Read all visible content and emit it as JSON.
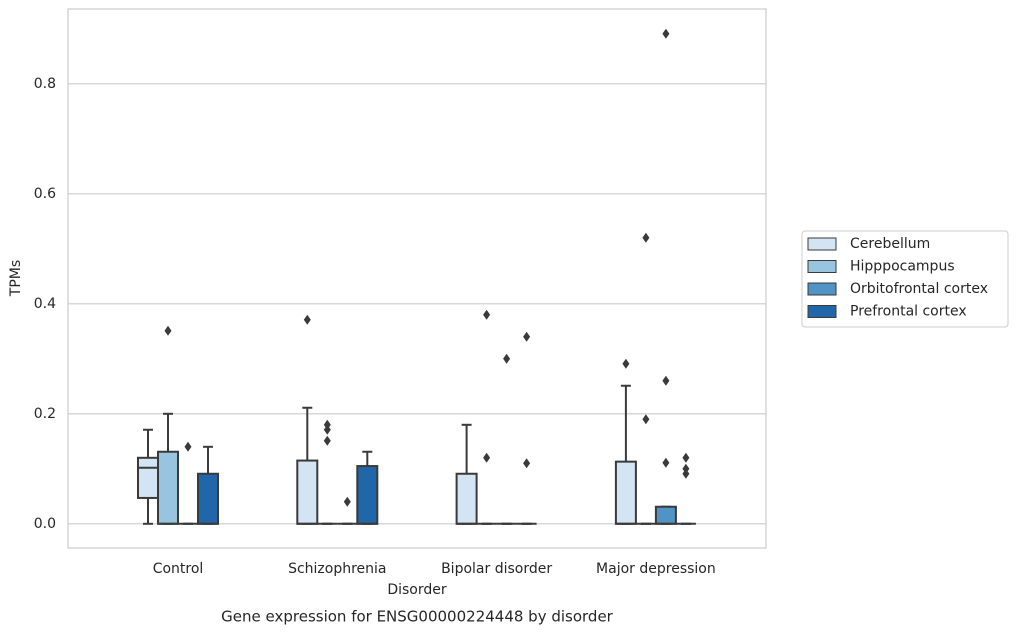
{
  "chart_data": {
    "type": "box",
    "title": "Gene expression for ENSG00000224448 by disorder",
    "xlabel": "Disorder",
    "ylabel": "TPMs",
    "categories": [
      "Control",
      "Schizophrenia",
      "Bipolar disorder",
      "Major depression"
    ],
    "ylim": [
      -0.044,
      0.936
    ],
    "yticks": [
      {
        "value": 0,
        "label": "0.0"
      },
      0.2,
      0.4,
      0.6,
      0.8
    ],
    "grid": true,
    "legend": "right",
    "series": [
      {
        "name": "Cerebellum",
        "color": "#d3e4f3",
        "boxes": [
          {
            "low": 0,
            "q1": 0.047,
            "median": 0.102,
            "q3": 0.12,
            "high": 0.171,
            "outliers": []
          },
          {
            "low": 0,
            "q1": 0,
            "median": 0,
            "q3": 0.115,
            "high": 0.211,
            "outliers": [
              0.371
            ]
          },
          {
            "low": 0,
            "q1": 0,
            "median": 0,
            "q3": 0.091,
            "high": 0.18,
            "outliers": []
          },
          {
            "low": 0,
            "q1": 0,
            "median": 0,
            "q3": 0.113,
            "high": 0.251,
            "outliers": [
              0.291
            ]
          }
        ]
      },
      {
        "name": "Hipppocampus",
        "color": "#99c4df",
        "boxes": [
          {
            "low": 0,
            "q1": 0,
            "median": 0,
            "q3": 0.131,
            "high": 0.2,
            "outliers": [
              0.351
            ]
          },
          {
            "low": 0,
            "q1": 0,
            "median": 0,
            "q3": 0,
            "high": 0,
            "outliers": [
              0.18,
              0.171,
              0.151
            ]
          },
          {
            "low": 0,
            "q1": 0,
            "median": 0,
            "q3": 0,
            "high": 0,
            "outliers": [
              0.38,
              0.12
            ]
          },
          {
            "low": 0,
            "q1": 0,
            "median": 0,
            "q3": 0,
            "high": 0,
            "outliers": [
              0.52,
              0.19
            ]
          }
        ]
      },
      {
        "name": "Orbitofrontal cortex",
        "color": "#4f94c4",
        "boxes": [
          {
            "low": 0,
            "q1": 0,
            "median": 0,
            "q3": 0,
            "high": 0,
            "outliers": [
              0.14
            ]
          },
          {
            "low": 0,
            "q1": 0,
            "median": 0,
            "q3": 0,
            "high": 0,
            "outliers": [
              0.04
            ]
          },
          {
            "low": 0,
            "q1": 0,
            "median": 0,
            "q3": 0,
            "high": 0,
            "outliers": [
              0.3
            ]
          },
          {
            "low": 0,
            "q1": 0,
            "median": 0,
            "q3": 0.031,
            "high": 0.031,
            "outliers": [
              0.891,
              0.26,
              0.111
            ]
          }
        ]
      },
      {
        "name": "Prefrontal cortex",
        "color": "#2166a8",
        "boxes": [
          {
            "low": 0,
            "q1": 0,
            "median": 0,
            "q3": 0.091,
            "high": 0.14,
            "outliers": []
          },
          {
            "low": 0,
            "q1": 0,
            "median": 0,
            "q3": 0.105,
            "high": 0.131,
            "outliers": []
          },
          {
            "low": 0,
            "q1": 0,
            "median": 0,
            "q3": 0,
            "high": 0,
            "outliers": [
              0.34,
              0.11
            ]
          },
          {
            "low": 0,
            "q1": 0,
            "median": 0,
            "q3": 0,
            "high": 0,
            "outliers": [
              0.12,
              0.1,
              0.091
            ]
          }
        ]
      }
    ]
  }
}
